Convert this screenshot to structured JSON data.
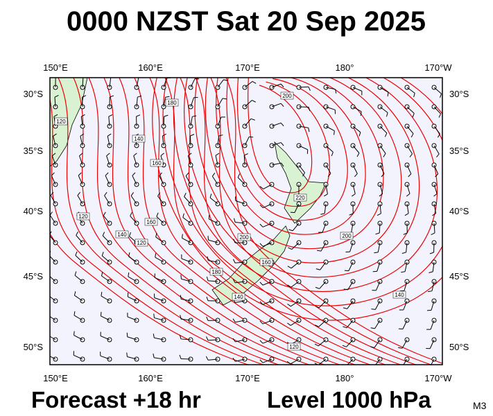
{
  "header": {
    "title": "0000 NZST Sat 20 Sep 2025"
  },
  "footer": {
    "forecast": "Forecast +18 hr",
    "level": "Level 1000 hPa",
    "model": "M3"
  },
  "map": {
    "longitude_labels": [
      "150°E",
      "160°E",
      "170°E",
      "180°",
      "170°W"
    ],
    "latitude_labels": [
      "30°S",
      "35°S",
      "40°S",
      "45°S",
      "50°S"
    ],
    "contour_labels": [
      "120",
      "140",
      "160",
      "120",
      "140",
      "160",
      "180",
      "200",
      "220",
      "200",
      "180",
      "160",
      "140",
      "120",
      "200",
      "140",
      "120"
    ]
  }
}
